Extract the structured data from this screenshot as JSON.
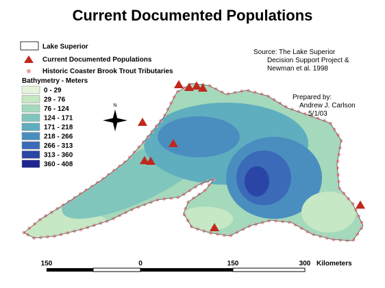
{
  "title": "Current Documented Populations",
  "legend": {
    "items": [
      "Lake Superior",
      "Current Documented Populations",
      "Historic Coaster Brook Trout Tributaries"
    ],
    "bathymetry_title": "Bathymetry - Meters",
    "classes": [
      {
        "label": "0 - 29",
        "color": "#e4f5dc"
      },
      {
        "label": "29 - 76",
        "color": "#c6e8c4"
      },
      {
        "label": "76 - 124",
        "color": "#a4d9bc"
      },
      {
        "label": "124 - 171",
        "color": "#80c6bc"
      },
      {
        "label": "171 - 218",
        "color": "#5faebf"
      },
      {
        "label": "218 - 266",
        "color": "#4a8ec0"
      },
      {
        "label": "266 - 313",
        "color": "#3a6ab8"
      },
      {
        "label": "313 - 360",
        "color": "#2a45a6"
      },
      {
        "label": "360 - 408",
        "color": "#1c2590"
      }
    ]
  },
  "source": [
    "Source: The Lake Superior",
    "Decision Support Project &",
    "Newman et al. 1998"
  ],
  "prepared": [
    "Prepared by:",
    "Andrew J. Carlson",
    "5/1/03"
  ],
  "north": "N",
  "scale": {
    "ticks": [
      "150",
      "0",
      "150",
      "300"
    ],
    "unit": "Kilometers"
  }
}
